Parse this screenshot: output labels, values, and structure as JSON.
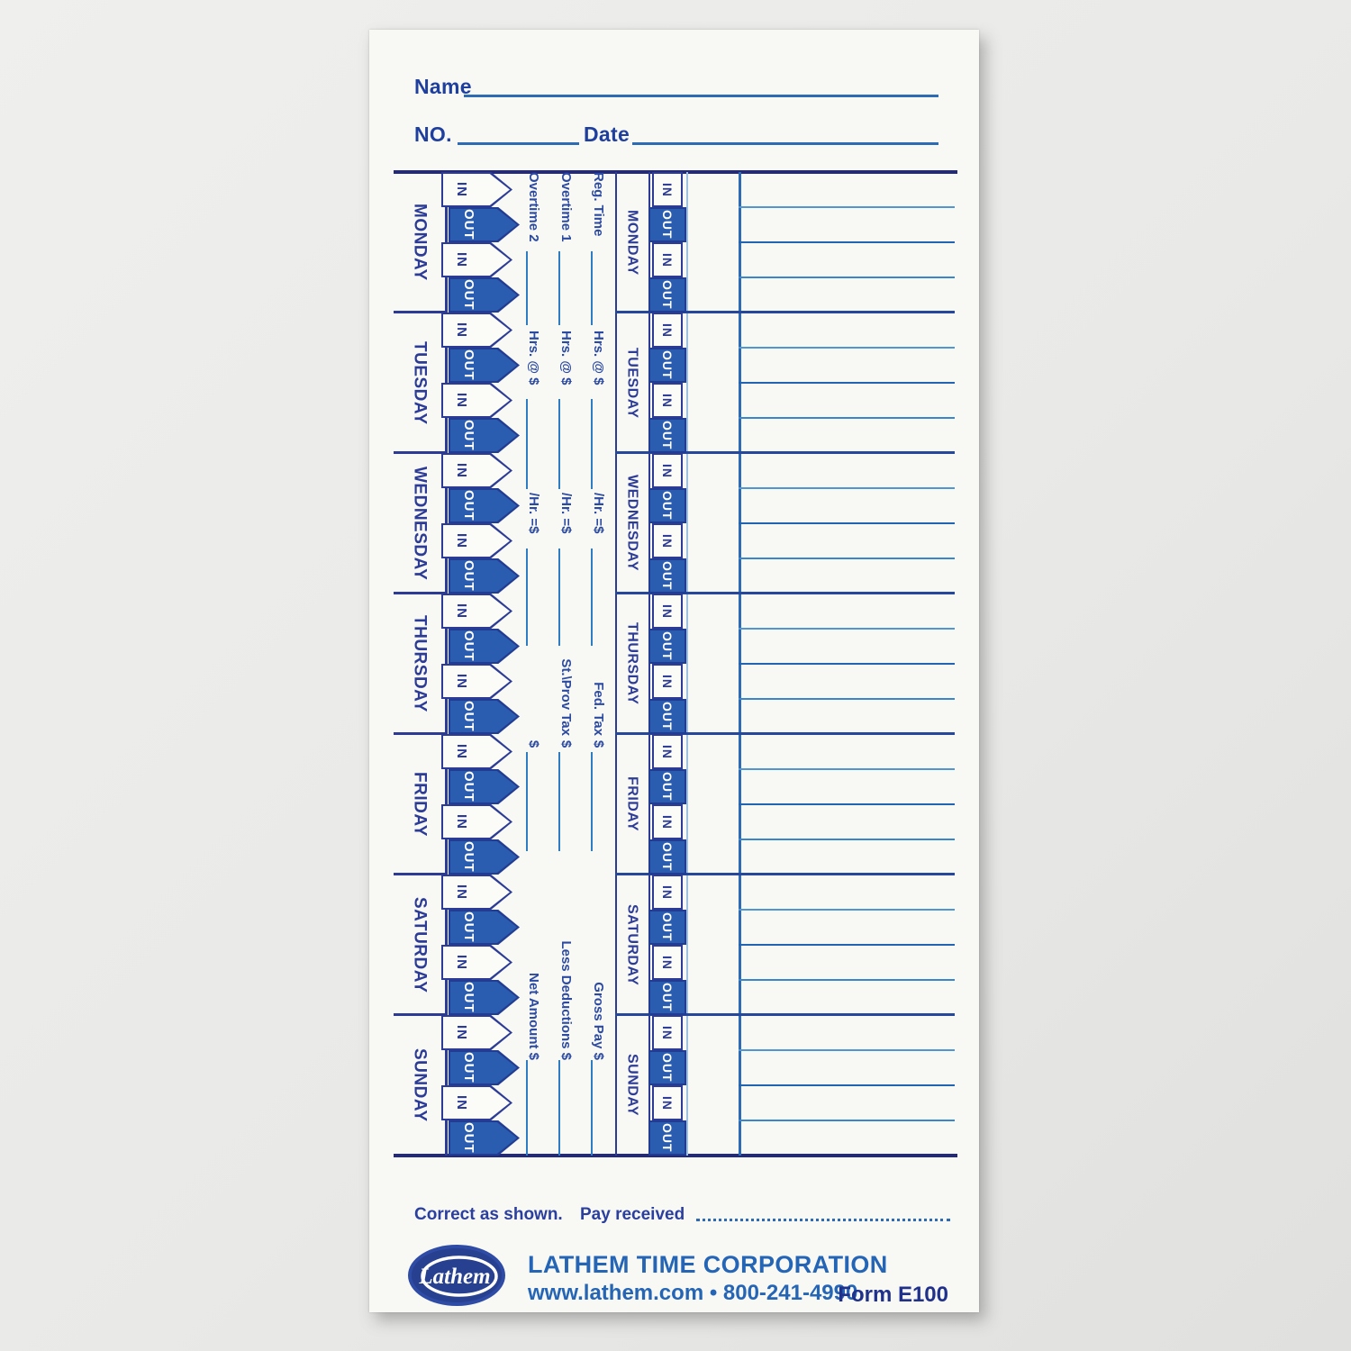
{
  "page": {
    "background_color": "#e9e9e7"
  },
  "card": {
    "header": {
      "name_label": "Name",
      "no_label": "NO.",
      "date_label": "Date"
    },
    "days": [
      "MONDAY",
      "TUESDAY",
      "WEDNESDAY",
      "THURSDAY",
      "FRIDAY",
      "SATURDAY",
      "SUNDAY"
    ],
    "cell_labels": {
      "in": "IN",
      "out": "OUT"
    },
    "pay_rows": [
      {
        "label": "Reg. Time",
        "hrs": "Hrs. @ $",
        "rate": "/Hr. =$",
        "tax": "Fed. Tax",
        "dollar": "$",
        "total": "Gross Pay $"
      },
      {
        "label": "Overtime 1",
        "hrs": "Hrs. @ $",
        "rate": "/Hr. =$",
        "tax": "St.\\Prov Tax",
        "dollar": "$",
        "total": "Less Deductions $"
      },
      {
        "label": "Overtime 2",
        "hrs": "Hrs. @ $",
        "rate": "/Hr. =$",
        "tax": "",
        "dollar": "$",
        "total": "Net Amount $"
      }
    ],
    "footer": {
      "correct_label": "Correct as shown.",
      "pay_received_label": "Pay received",
      "logo_text": "Lathem",
      "company": "LATHEM TIME CORPORATION",
      "website_phone": "www.lathem.com  •  800-241-4990",
      "form_number": "Form E100"
    },
    "colors": {
      "frame_navy": "#232a7d",
      "day_label_blue": "#2c3c96",
      "out_cell_fill": "#2a5cb0",
      "mid_blue": "#2d6cb5",
      "light_blue": "#4f96d2",
      "footer_blue": "#2565b5"
    }
  }
}
